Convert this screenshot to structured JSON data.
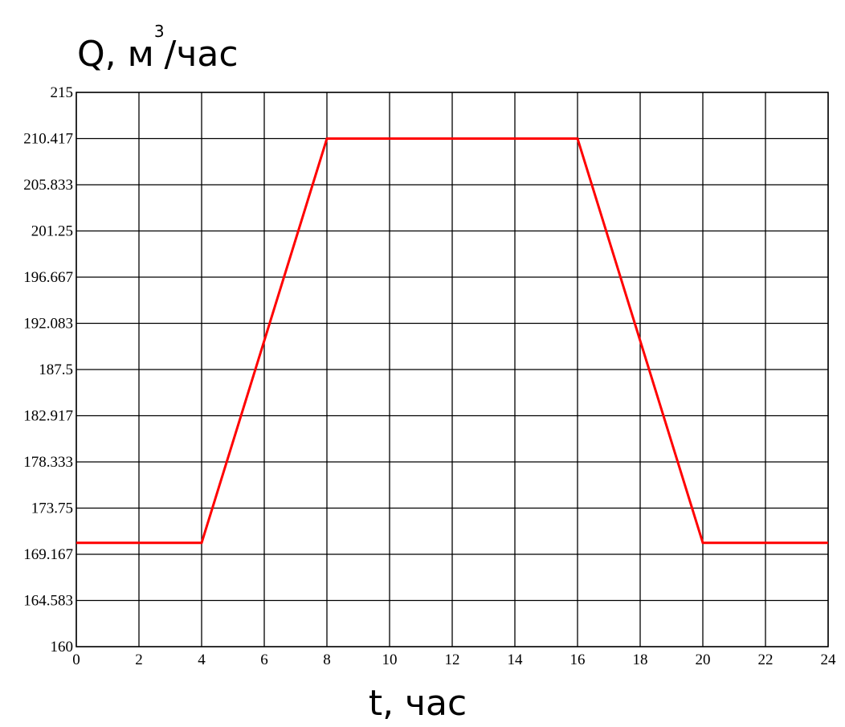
{
  "chart_data": {
    "type": "line",
    "ylabel": "Q, м/час",
    "ylabel_main": "Q, м",
    "ylabel_exp": "3",
    "ylabel_tail": "/час",
    "xlabel": "t, час",
    "xlim": [
      0,
      24
    ],
    "ylim": [
      160,
      215
    ],
    "x_ticks": [
      "0",
      "2",
      "4",
      "6",
      "8",
      "10",
      "12",
      "14",
      "16",
      "18",
      "20",
      "22",
      "24"
    ],
    "x_tick_values": [
      0,
      2,
      4,
      6,
      8,
      10,
      12,
      14,
      16,
      18,
      20,
      22,
      24
    ],
    "y_ticks": [
      "160",
      "164.583",
      "169.167",
      "173.75",
      "178.333",
      "182.917",
      "187.5",
      "192.083",
      "196.667",
      "201.25",
      "205.833",
      "210.417",
      "215"
    ],
    "y_tick_values": [
      160,
      164.583,
      169.167,
      173.75,
      178.333,
      182.917,
      187.5,
      192.083,
      196.667,
      201.25,
      205.833,
      210.417,
      215
    ],
    "grid": true,
    "series": [
      {
        "color": "#ff0000",
        "x": [
          0,
          4,
          8,
          16,
          20,
          24
        ],
        "y": [
          170.3,
          170.3,
          210.417,
          210.417,
          170.3,
          170.3
        ]
      }
    ]
  }
}
